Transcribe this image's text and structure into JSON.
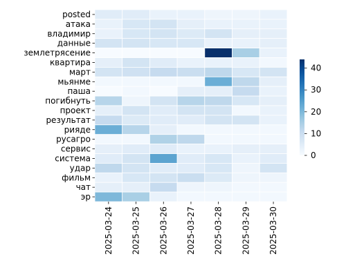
{
  "chart_data": {
    "type": "heatmap",
    "title": "",
    "xlabel": "",
    "ylabel": "",
    "x": [
      "2025-03-24",
      "2025-03-25",
      "2025-03-26",
      "2025-03-27",
      "2025-03-28",
      "2025-03-29",
      "2025-03-30"
    ],
    "y": [
      "posted",
      "атака",
      "владимир",
      "данные",
      "землетрясение",
      "квартира",
      "март",
      "мьянме",
      "паша",
      "погибнуть",
      "проект",
      "результат",
      "рияде",
      "русагро",
      "сервис",
      "система",
      "удар",
      "фильм",
      "чат",
      "эр"
    ],
    "values": [
      [
        5,
        5,
        3,
        3,
        2,
        2,
        3
      ],
      [
        3,
        7,
        8,
        4,
        3,
        3,
        3
      ],
      [
        3,
        7,
        8,
        6,
        8,
        4,
        4
      ],
      [
        8,
        8,
        7,
        7,
        3,
        3,
        4
      ],
      [
        0,
        0,
        0,
        0,
        44,
        15,
        3
      ],
      [
        4,
        8,
        5,
        3,
        3,
        3,
        1
      ],
      [
        8,
        9,
        11,
        10,
        12,
        7,
        8
      ],
      [
        1,
        1,
        1,
        1,
        22,
        12,
        4
      ],
      [
        0,
        1,
        0,
        4,
        4,
        11,
        3
      ],
      [
        13,
        2,
        8,
        13,
        12,
        7,
        4
      ],
      [
        4,
        8,
        5,
        8,
        8,
        1,
        3
      ],
      [
        11,
        6,
        5,
        5,
        8,
        8,
        3
      ],
      [
        22,
        13,
        4,
        1,
        1,
        1,
        1
      ],
      [
        1,
        1,
        14,
        12,
        1,
        1,
        1
      ],
      [
        4,
        5,
        5,
        3,
        3,
        4,
        4
      ],
      [
        5,
        8,
        24,
        5,
        7,
        3,
        5
      ],
      [
        12,
        8,
        5,
        5,
        7,
        2,
        8
      ],
      [
        3,
        7,
        8,
        10,
        6,
        2,
        2
      ],
      [
        4,
        4,
        11,
        2,
        2,
        1,
        1
      ],
      [
        20,
        15,
        3,
        1,
        1,
        1,
        1
      ]
    ],
    "colorbar": {
      "min": 0,
      "max": 44,
      "ticks": [
        "0",
        "10",
        "20",
        "30",
        "40"
      ],
      "colormap": "Blues"
    },
    "grid": true,
    "legend": "colorbar-right"
  }
}
